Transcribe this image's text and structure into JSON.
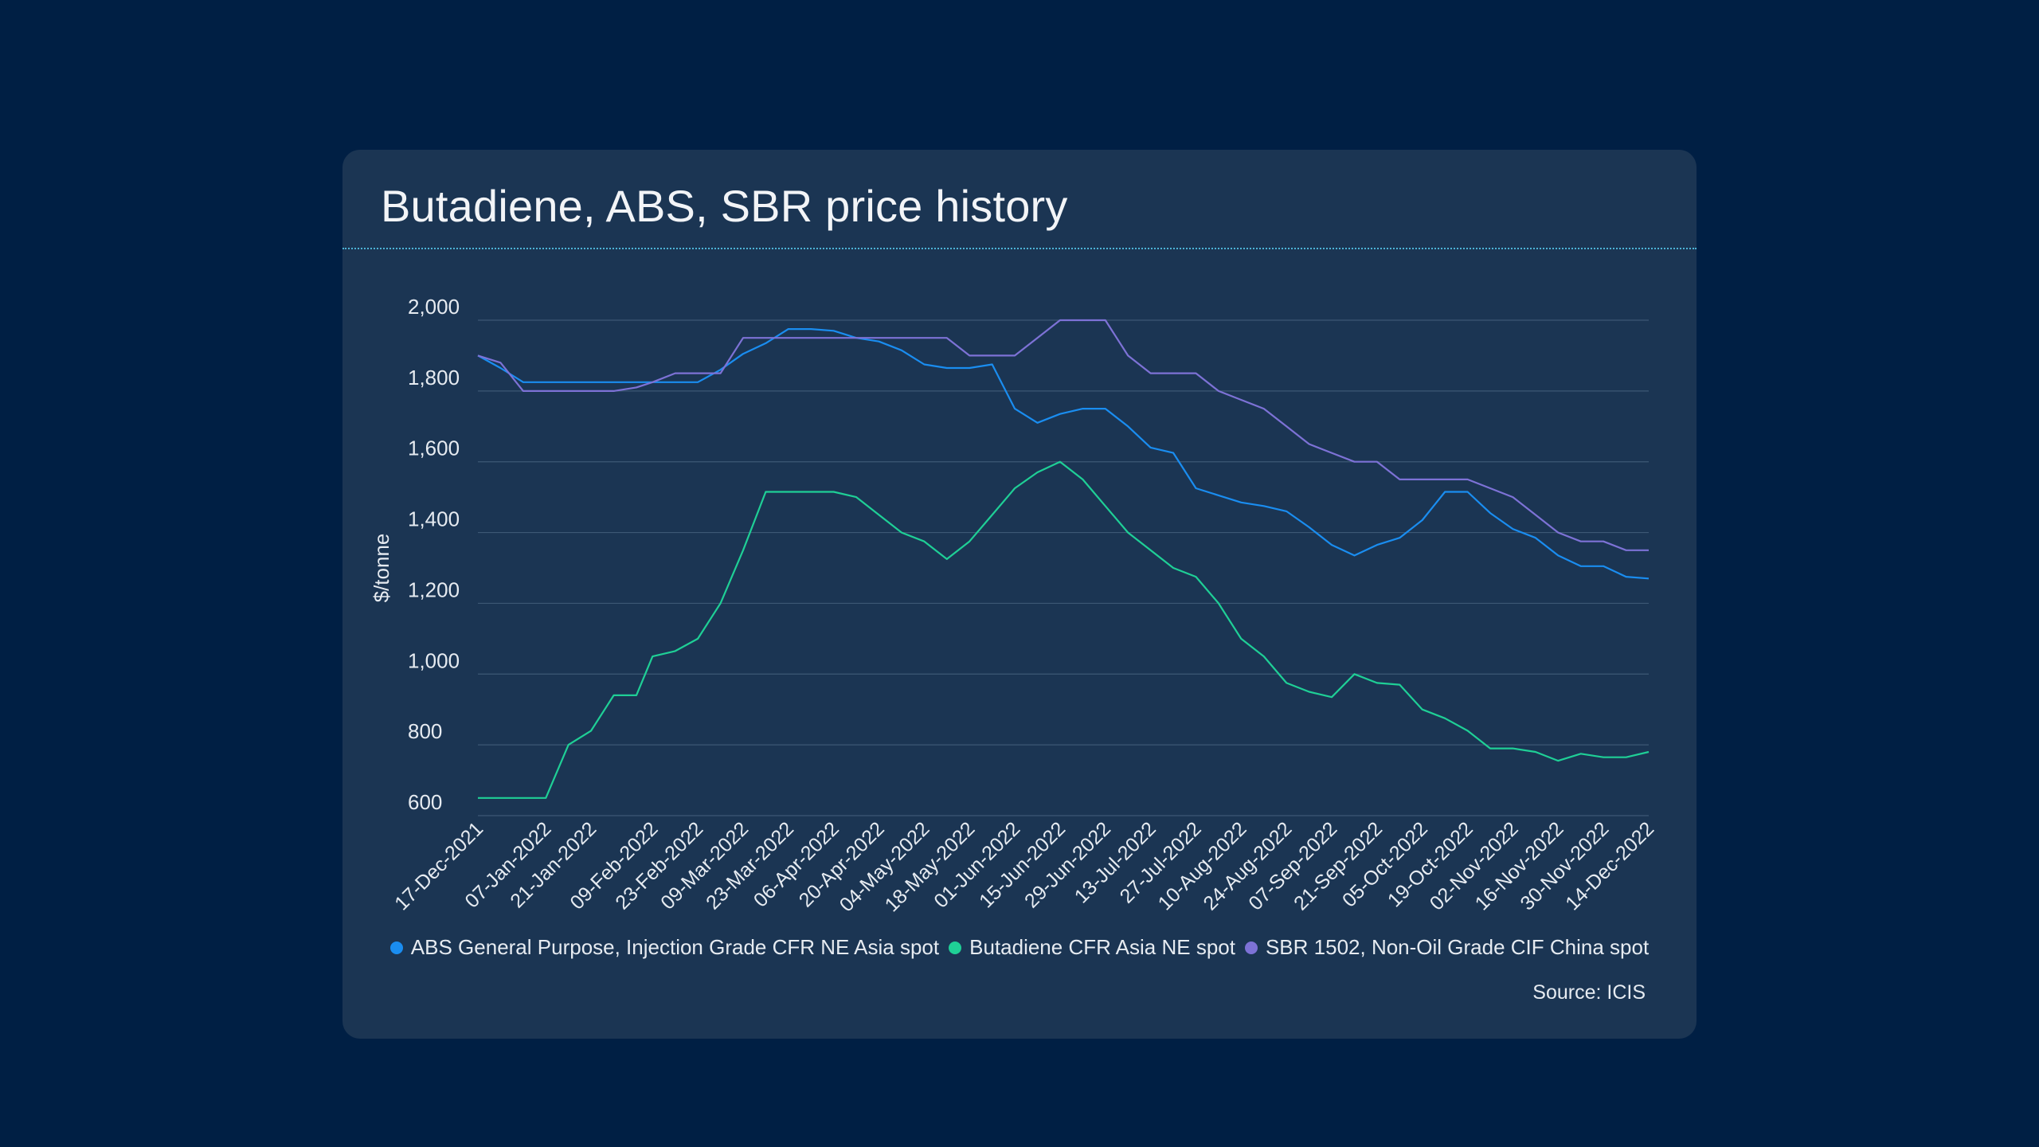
{
  "page": {
    "title": "Butadiene, ABS, SBR price history",
    "source": "Source: ICIS"
  },
  "colors": {
    "background": "#001f44",
    "card": "#1b3553",
    "abs": "#1a8df0",
    "butadiene": "#1fcf96",
    "sbr": "#7d72d6",
    "grid": "#3d5875"
  },
  "chart_data": {
    "type": "line",
    "title": "Butadiene, ABS, SBR price history",
    "xlabel": "",
    "ylabel": "$/tonne",
    "ylim": [
      600,
      2000
    ],
    "yticks": [
      600,
      800,
      1000,
      1200,
      1400,
      1600,
      1800,
      2000
    ],
    "ytick_labels": [
      "600",
      "800",
      "1,000",
      "1,200",
      "1,400",
      "1,600",
      "1,800",
      "2,000"
    ],
    "grid": true,
    "legend": "bottom",
    "x_tick_labels": [
      "17-Dec-2021",
      "07-Jan-2022",
      "21-Jan-2022",
      "09-Feb-2022",
      "23-Feb-2022",
      "09-Mar-2022",
      "23-Mar-2022",
      "06-Apr-2022",
      "20-Apr-2022",
      "04-May-2022",
      "18-May-2022",
      "01-Jun-2022",
      "15-Jun-2022",
      "29-Jun-2022",
      "13-Jul-2022",
      "27-Jul-2022",
      "10-Aug-2022",
      "24-Aug-2022",
      "07-Sep-2022",
      "21-Sep-2022",
      "05-Oct-2022",
      "19-Oct-2022",
      "02-Nov-2022",
      "16-Nov-2022",
      "30-Nov-2022",
      "14-Dec-2022"
    ],
    "x": [
      "17-Dec-2021",
      "24-Dec-2021",
      "31-Dec-2021",
      "07-Jan-2022",
      "14-Jan-2022",
      "21-Jan-2022",
      "28-Jan-2022",
      "04-Feb-2022",
      "09-Feb-2022",
      "16-Feb-2022",
      "23-Feb-2022",
      "02-Mar-2022",
      "09-Mar-2022",
      "16-Mar-2022",
      "23-Mar-2022",
      "30-Mar-2022",
      "06-Apr-2022",
      "13-Apr-2022",
      "20-Apr-2022",
      "27-Apr-2022",
      "04-May-2022",
      "11-May-2022",
      "18-May-2022",
      "25-May-2022",
      "01-Jun-2022",
      "08-Jun-2022",
      "15-Jun-2022",
      "22-Jun-2022",
      "29-Jun-2022",
      "06-Jul-2022",
      "13-Jul-2022",
      "20-Jul-2022",
      "27-Jul-2022",
      "03-Aug-2022",
      "10-Aug-2022",
      "17-Aug-2022",
      "24-Aug-2022",
      "31-Aug-2022",
      "07-Sep-2022",
      "14-Sep-2022",
      "21-Sep-2022",
      "28-Sep-2022",
      "05-Oct-2022",
      "12-Oct-2022",
      "19-Oct-2022",
      "26-Oct-2022",
      "02-Nov-2022",
      "09-Nov-2022",
      "16-Nov-2022",
      "23-Nov-2022",
      "30-Nov-2022",
      "07-Dec-2022",
      "14-Dec-2022"
    ],
    "series": [
      {
        "name": "ABS General Purpose, Injection Grade CFR NE Asia spot",
        "color": "#1a8df0",
        "values": [
          1900,
          1865,
          1825,
          1825,
          1825,
          1825,
          1825,
          1825,
          1825,
          1825,
          1825,
          1860,
          1905,
          1935,
          1975,
          1975,
          1970,
          1950,
          1940,
          1915,
          1875,
          1865,
          1865,
          1875,
          1750,
          1710,
          1735,
          1750,
          1750,
          1700,
          1640,
          1625,
          1525,
          1505,
          1485,
          1475,
          1460,
          1415,
          1365,
          1335,
          1365,
          1385,
          1435,
          1515,
          1515,
          1455,
          1410,
          1385,
          1335,
          1305,
          1305,
          1275,
          1270
        ]
      },
      {
        "name": "Butadiene CFR Asia NE spot",
        "color": "#1fcf96",
        "values": [
          650,
          650,
          650,
          650,
          800,
          840,
          940,
          940,
          1050,
          1065,
          1100,
          1200,
          1350,
          1515,
          1515,
          1515,
          1515,
          1500,
          1450,
          1400,
          1375,
          1325,
          1375,
          1450,
          1525,
          1570,
          1600,
          1550,
          1475,
          1400,
          1350,
          1300,
          1275,
          1200,
          1100,
          1050,
          975,
          950,
          935,
          1000,
          975,
          970,
          900,
          875,
          840,
          790,
          790,
          780,
          755,
          775,
          765,
          765,
          780
        ]
      },
      {
        "name": "SBR 1502, Non-Oil Grade CIF China spot",
        "color": "#7d72d6",
        "values": [
          1900,
          1880,
          1800,
          1800,
          1800,
          1800,
          1800,
          1810,
          1825,
          1850,
          1850,
          1850,
          1950,
          1950,
          1950,
          1950,
          1950,
          1950,
          1950,
          1950,
          1950,
          1950,
          1900,
          1900,
          1900,
          1950,
          2000,
          2000,
          2000,
          1900,
          1850,
          1850,
          1850,
          1800,
          1775,
          1750,
          1700,
          1650,
          1625,
          1600,
          1600,
          1550,
          1550,
          1550,
          1550,
          1525,
          1500,
          1450,
          1400,
          1375,
          1375,
          1350,
          1350
        ]
      }
    ]
  }
}
